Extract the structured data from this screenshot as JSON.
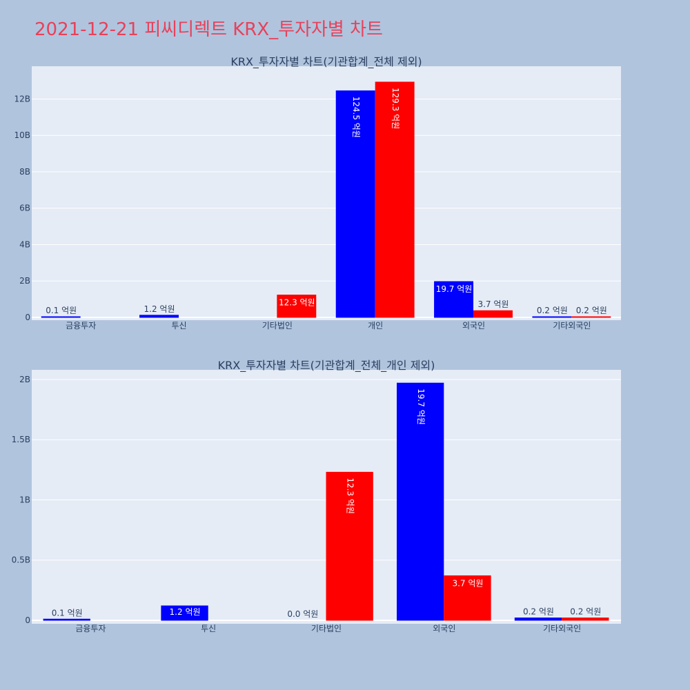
{
  "page_title": "2021-12-21 피씨디렉트 KRX_투자자별 차트",
  "colors": {
    "buy": "#0000ff",
    "sell": "#ff0000",
    "background": "#b0c4de",
    "plot_bg": "#e5ecf6",
    "title": "#e8415a"
  },
  "chart_data": [
    {
      "type": "bar",
      "title": "KRX_투자자별 차트(기관합계_전체 제외)",
      "categories": [
        "금융투자",
        "투신",
        "기타법인",
        "개인",
        "외국인",
        "기타외국인"
      ],
      "y_ticks": [
        {
          "value": 0,
          "label": "0"
        },
        {
          "value": 2000000000,
          "label": "2B"
        },
        {
          "value": 4000000000,
          "label": "4B"
        },
        {
          "value": 6000000000,
          "label": "6B"
        },
        {
          "value": 8000000000,
          "label": "8B"
        },
        {
          "value": 10000000000,
          "label": "10B"
        },
        {
          "value": 12000000000,
          "label": "12B"
        }
      ],
      "ylim": [
        0,
        13800000000
      ],
      "series": [
        {
          "color": "#0000ff",
          "values": [
            10000000,
            120000000,
            0,
            12450000000,
            1970000000,
            20000000
          ],
          "labels": [
            "0.1 억원",
            "1.2 억원",
            "",
            "124.5 억원",
            "19.7 억원",
            "0.2 억원"
          ]
        },
        {
          "color": "#ff0000",
          "values": [
            0,
            0,
            1230000000,
            12930000000,
            370000000,
            20000000
          ],
          "labels": [
            "",
            "",
            "12.3 억원",
            "129.3 억원",
            "3.7 억원",
            "0.2 억원"
          ]
        }
      ]
    },
    {
      "type": "bar",
      "title": "KRX_투자자별 차트(기관합계_전체_개인 제외)",
      "categories": [
        "금융투자",
        "투신",
        "기타법인",
        "외국인",
        "기타외국인"
      ],
      "y_ticks": [
        {
          "value": 0,
          "label": "0"
        },
        {
          "value": 500000000,
          "label": "0.5B"
        },
        {
          "value": 1000000000,
          "label": "1B"
        },
        {
          "value": 1500000000,
          "label": "1.5B"
        },
        {
          "value": 2000000000,
          "label": "2B"
        }
      ],
      "ylim": [
        0,
        2080000000
      ],
      "series": [
        {
          "color": "#0000ff",
          "values": [
            10000000,
            120000000,
            0,
            1970000000,
            20000000
          ],
          "labels": [
            "0.1 억원",
            "1.2 억원",
            "0.0 억원",
            "19.7 억원",
            "0.2 억원"
          ]
        },
        {
          "color": "#ff0000",
          "values": [
            0,
            0,
            1230000000,
            370000000,
            20000000
          ],
          "labels": [
            "",
            "",
            "12.3 억원",
            "3.7 억원",
            "0.2 억원"
          ]
        }
      ]
    }
  ]
}
